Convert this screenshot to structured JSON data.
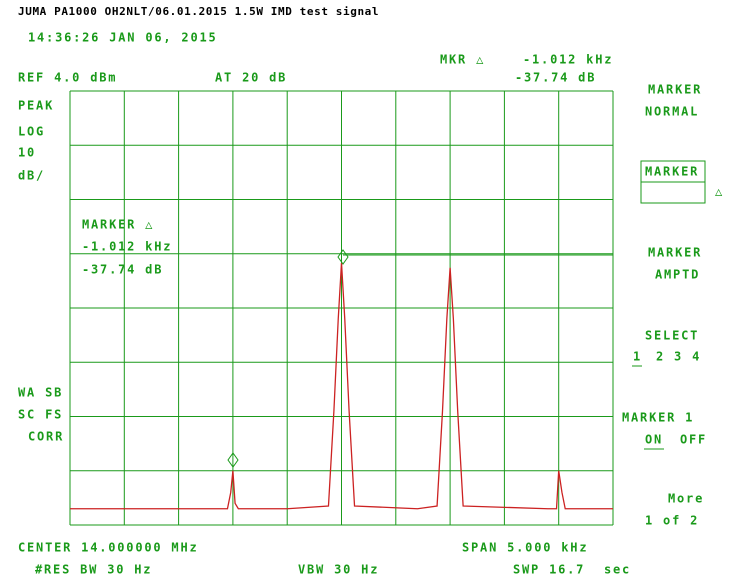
{
  "header": {
    "title": "JUMA PA1000 OH2NLT/06.01.2015 1.5W IMD test signal",
    "timestamp": "14:36:26 JAN 06, 2015"
  },
  "readout": {
    "marker_label": "MKR △",
    "marker_freq": "-1.012 kHz",
    "marker_level": "-37.74 dB",
    "ref_level": "REF 4.0 dBm",
    "attenuation": "AT 20 dB"
  },
  "left_labels": [
    "PEAK",
    "LOG",
    "10",
    "dB/",
    "WA SB",
    "SC FS",
    "CORR"
  ],
  "marker_box": [
    "MARKER △",
    "-1.012 kHz",
    "-37.74 dB"
  ],
  "softkeys": {
    "marker_normal": [
      "MARKER",
      "NORMAL"
    ],
    "marker_delta": [
      "MARKER",
      "△"
    ],
    "marker_amptd": [
      "MARKER",
      "AMPTD"
    ],
    "select": {
      "label": "SELECT",
      "options": [
        "1",
        "2 3 4"
      ]
    },
    "marker_1": {
      "label": "MARKER 1",
      "options": [
        "ON",
        "OFF"
      ]
    },
    "more": [
      "More",
      "1 of 2"
    ]
  },
  "footer": {
    "center": "CENTER 14.000000 MHz",
    "span": "SPAN 5.000 kHz",
    "rbw": "#RES BW 30 Hz",
    "vbw": "VBW 30 Hz",
    "sweep": "SWP 16.7",
    "sweep_unit": "sec"
  },
  "chart_data": {
    "type": "line",
    "x": [
      13.9975,
      13.9985,
      13.99895,
      13.99898,
      13.999,
      13.99902,
      13.99905,
      13.9995,
      13.99988,
      13.99993,
      13.99997,
      14.0,
      14.00003,
      14.00007,
      14.00012,
      14.0007,
      14.00088,
      14.00093,
      14.00097,
      14.001,
      14.00103,
      14.00107,
      14.00112,
      14.0019,
      14.00198,
      14.002,
      14.00203,
      14.00206,
      14.0025
    ],
    "values": [
      -73,
      -73,
      -73,
      -70,
      -66,
      -72,
      -73,
      -73,
      -72.5,
      -55,
      -38,
      -27.7,
      -38,
      -55,
      -72.5,
      -73,
      -72.5,
      -55,
      -38,
      -28.6,
      -38,
      -55,
      -72.5,
      -73,
      -73,
      -66,
      -70,
      -73,
      -73
    ],
    "color": "#cc2222",
    "xlim": [
      13.9975,
      14.0025
    ],
    "ylim": [
      -76,
      4
    ]
  }
}
